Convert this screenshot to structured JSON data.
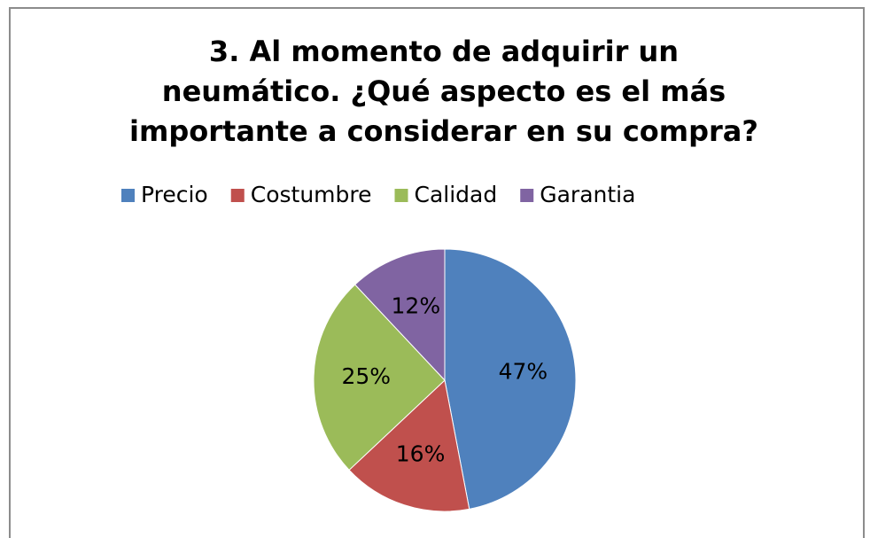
{
  "chart_data": {
    "type": "pie",
    "title": "3. Al momento de adquirir un\nneumático. ¿Qué aspecto es el más\nimportante a considerar en su compra?",
    "categories": [
      "Precio",
      "Costumbre",
      "Calidad",
      "Garantia"
    ],
    "values": [
      47,
      16,
      25,
      12
    ],
    "value_labels": [
      "47%",
      "16%",
      "25%",
      "12%"
    ],
    "colors": [
      "#4f81bd",
      "#c0504d",
      "#9bbb59",
      "#8064a2"
    ],
    "legend": "top"
  }
}
